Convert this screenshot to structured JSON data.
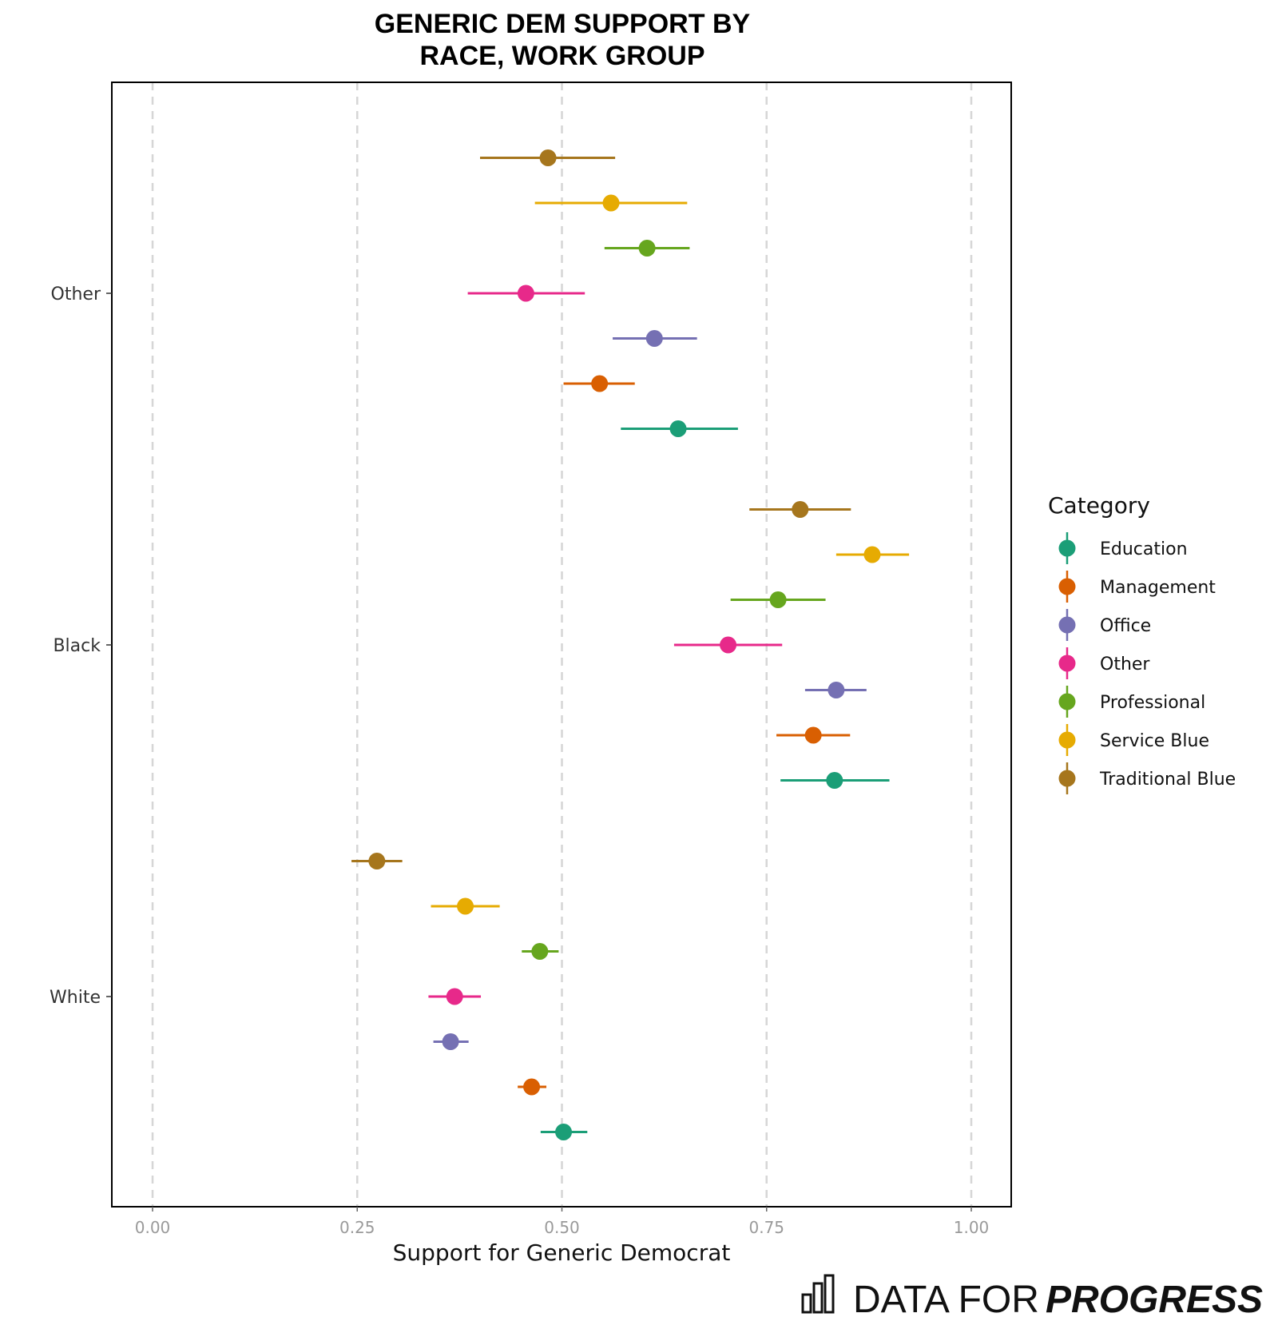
{
  "chart_data": {
    "type": "scatter",
    "title_lines": [
      "GENERIC DEM SUPPORT BY",
      "RACE, WORK GROUP"
    ],
    "xlabel": "Support for Generic Democrat",
    "ylabel": "",
    "xlim": [
      0,
      1
    ],
    "x_ticks": [
      "0.00",
      "0.25",
      "0.50",
      "0.75",
      "1.00"
    ],
    "x_tick_values": [
      0,
      0.25,
      0.5,
      0.75,
      1.0
    ],
    "grid": "vertical dashed",
    "legend_position": "right",
    "legend_title": "Category",
    "categories": [
      "Other",
      "Black",
      "White"
    ],
    "series": [
      {
        "name": "Education",
        "color": "#1b9e77",
        "points": [
          {
            "group": "Other",
            "x": 0.642,
            "lo": 0.572,
            "hi": 0.715
          },
          {
            "group": "Black",
            "x": 0.833,
            "lo": 0.767,
            "hi": 0.9
          },
          {
            "group": "White",
            "x": 0.502,
            "lo": 0.474,
            "hi": 0.531
          }
        ]
      },
      {
        "name": "Management",
        "color": "#d95f02",
        "points": [
          {
            "group": "Other",
            "x": 0.546,
            "lo": 0.502,
            "hi": 0.589
          },
          {
            "group": "Black",
            "x": 0.807,
            "lo": 0.762,
            "hi": 0.852
          },
          {
            "group": "White",
            "x": 0.463,
            "lo": 0.446,
            "hi": 0.481
          }
        ]
      },
      {
        "name": "Office",
        "color": "#7570b3",
        "points": [
          {
            "group": "Other",
            "x": 0.613,
            "lo": 0.562,
            "hi": 0.665
          },
          {
            "group": "Black",
            "x": 0.835,
            "lo": 0.797,
            "hi": 0.872
          },
          {
            "group": "White",
            "x": 0.364,
            "lo": 0.343,
            "hi": 0.386
          }
        ]
      },
      {
        "name": "Other",
        "color": "#e7298a",
        "points": [
          {
            "group": "Other",
            "x": 0.456,
            "lo": 0.385,
            "hi": 0.528
          },
          {
            "group": "Black",
            "x": 0.703,
            "lo": 0.637,
            "hi": 0.769
          },
          {
            "group": "White",
            "x": 0.369,
            "lo": 0.337,
            "hi": 0.401
          }
        ]
      },
      {
        "name": "Professional",
        "color": "#66a61e",
        "points": [
          {
            "group": "Other",
            "x": 0.604,
            "lo": 0.552,
            "hi": 0.656
          },
          {
            "group": "Black",
            "x": 0.764,
            "lo": 0.706,
            "hi": 0.822
          },
          {
            "group": "White",
            "x": 0.473,
            "lo": 0.451,
            "hi": 0.496
          }
        ]
      },
      {
        "name": "Service Blue",
        "color": "#e6ab02",
        "points": [
          {
            "group": "Other",
            "x": 0.56,
            "lo": 0.467,
            "hi": 0.653
          },
          {
            "group": "Black",
            "x": 0.879,
            "lo": 0.835,
            "hi": 0.924
          },
          {
            "group": "White",
            "x": 0.382,
            "lo": 0.34,
            "hi": 0.424
          }
        ]
      },
      {
        "name": "Traditional Blue",
        "color": "#a6761d",
        "points": [
          {
            "group": "Other",
            "x": 0.483,
            "lo": 0.4,
            "hi": 0.565
          },
          {
            "group": "Black",
            "x": 0.791,
            "lo": 0.729,
            "hi": 0.853
          },
          {
            "group": "White",
            "x": 0.274,
            "lo": 0.243,
            "hi": 0.305
          }
        ]
      }
    ]
  },
  "brand": {
    "plain": "DATA FOR",
    "bold": "PROGRESS"
  }
}
